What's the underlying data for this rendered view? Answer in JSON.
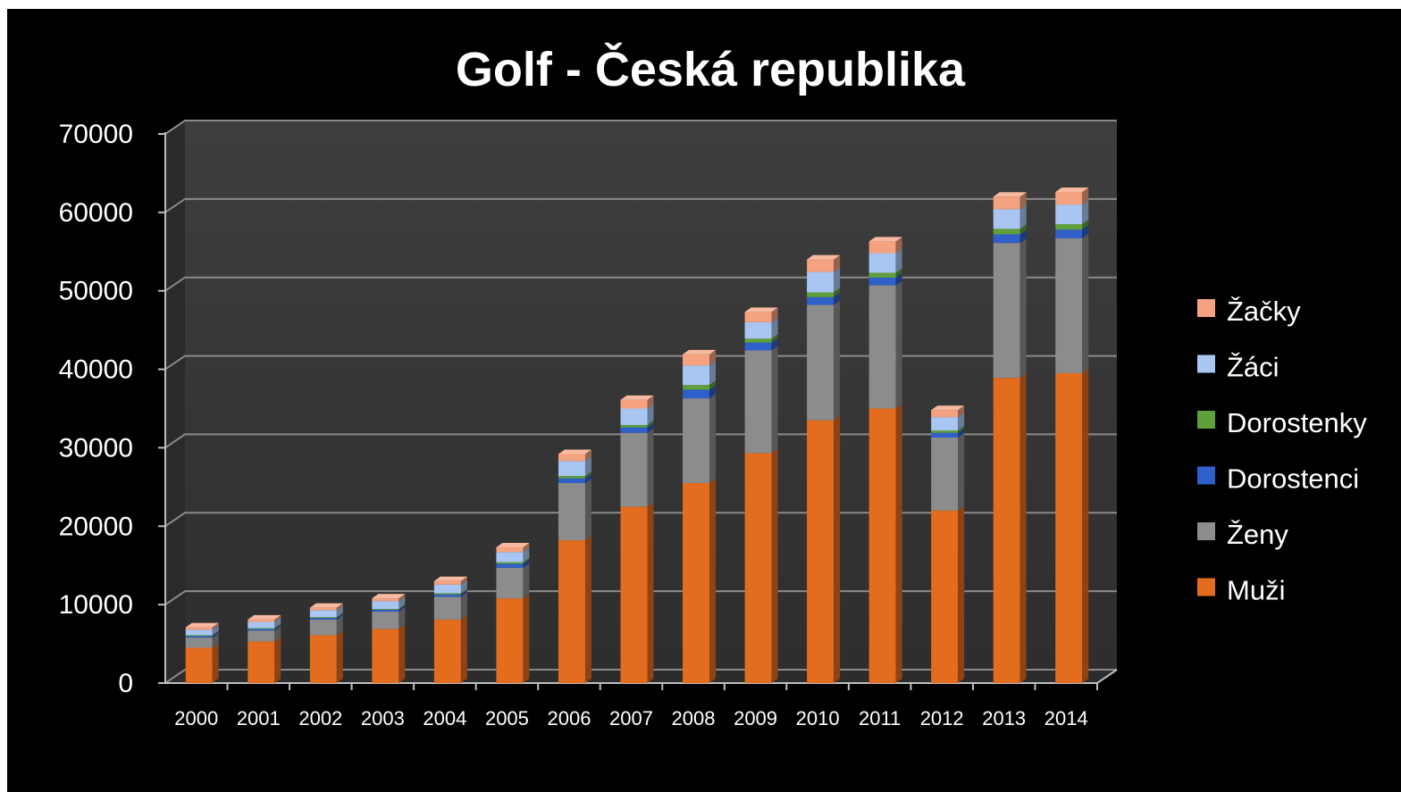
{
  "chart_data": {
    "type": "bar",
    "stacked": true,
    "title": "Golf - Česká republika",
    "xlabel": "",
    "ylabel": "",
    "ylim": [
      0,
      70000
    ],
    "yticks": [
      "0",
      "10000",
      "20000",
      "30000",
      "40000",
      "50000",
      "60000",
      "70000"
    ],
    "grid": true,
    "legend_position": "right",
    "categories": [
      "2000",
      "2001",
      "2002",
      "2003",
      "2004",
      "2005",
      "2006",
      "2007",
      "2008",
      "2009",
      "2010",
      "2011",
      "2012",
      "2013",
      "2014"
    ],
    "series": [
      {
        "name": "Muži",
        "color": "#E36C1E",
        "values": [
          4500,
          5300,
          6100,
          6900,
          8100,
          10800,
          18200,
          22500,
          25500,
          29300,
          33500,
          35000,
          22000,
          38900,
          39500
        ]
      },
      {
        "name": "Ženy",
        "color": "#8C8C8C",
        "values": [
          1300,
          1400,
          2000,
          2200,
          2900,
          3900,
          7300,
          9400,
          10800,
          13100,
          14700,
          15700,
          9300,
          17200,
          17200
        ]
      },
      {
        "name": "Dorostenci",
        "color": "#2F5FC8",
        "values": [
          200,
          200,
          200,
          250,
          300,
          500,
          600,
          700,
          1100,
          1000,
          1000,
          1000,
          600,
          1100,
          1100
        ]
      },
      {
        "name": "Dorostenky",
        "color": "#5FA03A",
        "values": [
          100,
          100,
          100,
          100,
          150,
          200,
          300,
          300,
          600,
          500,
          600,
          600,
          300,
          700,
          700
        ]
      },
      {
        "name": "Žáci",
        "color": "#A9C6F2",
        "values": [
          700,
          800,
          900,
          1000,
          1100,
          1300,
          1900,
          2100,
          2500,
          2100,
          2600,
          2500,
          1700,
          2500,
          2500
        ]
      },
      {
        "name": "Žačky",
        "color": "#F4A27F",
        "values": [
          300,
          300,
          300,
          350,
          450,
          600,
          900,
          1100,
          1400,
          1300,
          1600,
          1500,
          900,
          1600,
          1600
        ]
      }
    ],
    "legend_order": [
      "Žačky",
      "Žáci",
      "Dorostenky",
      "Dorostenci",
      "Ženy",
      "Muži"
    ],
    "background_color": "#000000",
    "wall_color": "#3A3A3A"
  }
}
